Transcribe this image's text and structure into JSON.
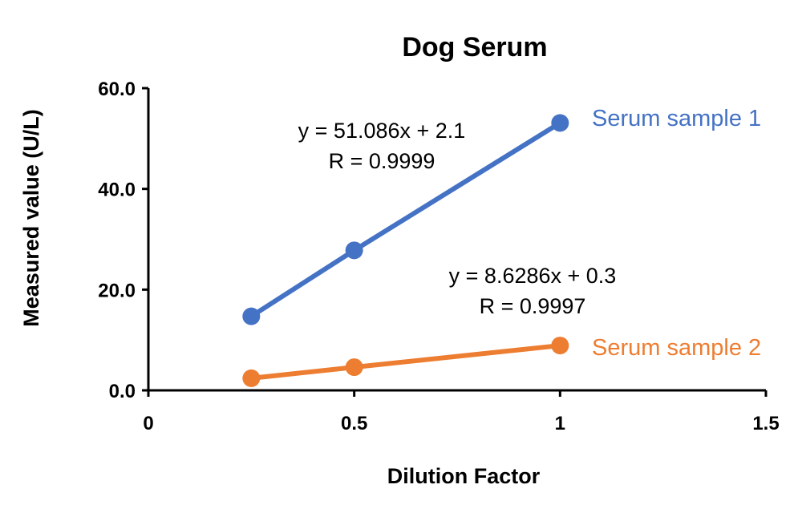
{
  "chart_data": {
    "type": "scatter",
    "title": "Dog Serum",
    "xlabel": "Dilution Factor",
    "ylabel": "Measured value (U/L)",
    "xlim": [
      0,
      1.5
    ],
    "ylim": [
      0,
      60
    ],
    "x_ticks": [
      "0",
      "0.5",
      "1",
      "1.5"
    ],
    "y_ticks": [
      "0.0",
      "20.0",
      "40.0",
      "60.0"
    ],
    "grid": false,
    "series": [
      {
        "name": "Serum sample 1",
        "color": "#4472C4",
        "x": [
          0.25,
          0.5,
          1
        ],
        "y": [
          14.7,
          27.8,
          53.1
        ],
        "equation": "y = 51.086x + 2.1",
        "r": "R = 0.9999"
      },
      {
        "name": "Serum sample 2",
        "color": "#ED7D31",
        "x": [
          0.25,
          0.5,
          1
        ],
        "y": [
          2.4,
          4.6,
          8.9
        ],
        "equation": "y = 8.6286x + 0.3",
        "r": "R = 0.9997"
      }
    ]
  }
}
